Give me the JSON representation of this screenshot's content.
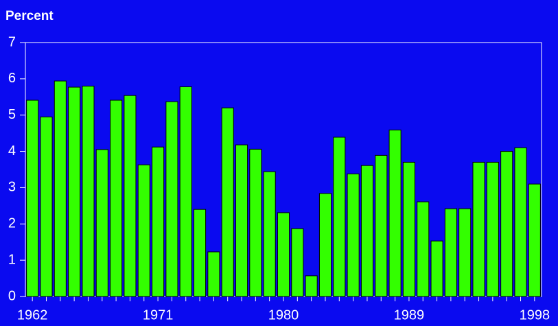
{
  "chart_data": {
    "type": "bar",
    "title": "Percent",
    "categories": [
      "1962",
      null,
      null,
      null,
      null,
      null,
      null,
      null,
      null,
      "1971",
      null,
      null,
      null,
      null,
      null,
      null,
      null,
      null,
      "1980",
      null,
      null,
      null,
      null,
      null,
      null,
      null,
      null,
      "1989",
      null,
      null,
      null,
      null,
      null,
      null,
      null,
      null,
      "1998"
    ],
    "values": [
      5.41,
      4.95,
      5.94,
      5.77,
      5.8,
      4.05,
      5.41,
      5.54,
      3.63,
      4.12,
      5.37,
      5.78,
      2.4,
      1.23,
      5.2,
      4.18,
      4.06,
      3.44,
      2.31,
      1.87,
      0.57,
      2.84,
      4.39,
      3.38,
      3.61,
      3.89,
      4.59,
      3.7,
      2.61,
      1.53,
      2.42,
      2.42,
      3.7,
      3.7,
      4.0,
      4.1,
      3.1
    ],
    "color": "#33ff00",
    "ylim": [
      0,
      7
    ],
    "yticks": [
      0,
      1,
      2,
      3,
      4,
      5,
      6,
      7
    ]
  }
}
